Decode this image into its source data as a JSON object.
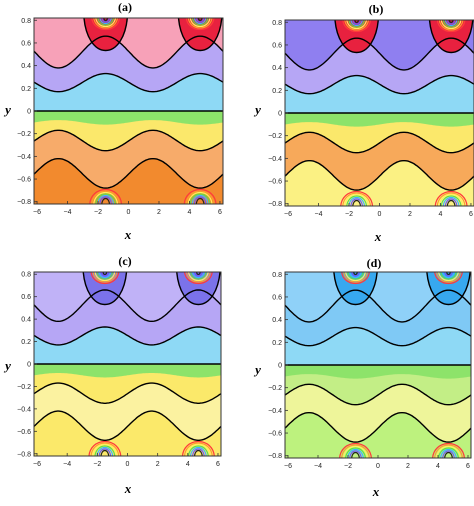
{
  "chart_data": [
    {
      "type": "contour",
      "title": "(a)",
      "xlabel": "x",
      "ylabel": "y",
      "xlim": [
        -6.2,
        6.2
      ],
      "ylim": [
        -0.82,
        0.82
      ],
      "xticks": [
        -6,
        -4,
        -2,
        0,
        2,
        4,
        6
      ],
      "yticks": [
        -0.8,
        -0.6,
        -0.4,
        -0.2,
        0,
        0.2,
        0.4,
        0.6,
        0.8
      ],
      "peaks_x": [
        -1.5,
        4.7
      ],
      "contour_levels_y_at_x0": [
        0.25,
        0.55,
        0.0,
        -0.25,
        -0.55
      ],
      "band_colors_bottom_to_top": [
        "#f28a2e",
        "#f7ab6a",
        "#fbe86b",
        "#8de36a",
        "#8ed9f5",
        "#b6a6f5",
        "#e8213f",
        "#f7a1b8"
      ],
      "grid": false
    },
    {
      "type": "contour",
      "title": "(b)",
      "xlabel": "x",
      "ylabel": "y",
      "xlim": [
        -6.2,
        6.2
      ],
      "ylim": [
        -0.82,
        0.82
      ],
      "xticks": [
        -6,
        -4,
        -2,
        0,
        2,
        4,
        6
      ],
      "yticks": [
        -0.8,
        -0.6,
        -0.4,
        -0.2,
        0,
        0.2,
        0.4,
        0.6,
        0.8
      ],
      "peaks_x": [
        -1.5,
        4.7
      ],
      "contour_levels_y_at_x0": [
        0.25,
        0.55,
        0.0,
        -0.25,
        -0.55
      ],
      "band_colors_bottom_to_top": [
        "#fbf183",
        "#f7a95a",
        "#fbe86b",
        "#8de36a",
        "#8ed9f5",
        "#b6a6f5",
        "#e8213f",
        "#8f7ff0"
      ],
      "grid": false
    },
    {
      "type": "contour",
      "title": "(c)",
      "xlabel": "x",
      "ylabel": "y",
      "xlim": [
        -6.2,
        6.2
      ],
      "ylim": [
        -0.82,
        0.82
      ],
      "xticks": [
        -6,
        -4,
        -2,
        0,
        2,
        4,
        6
      ],
      "yticks": [
        -0.8,
        -0.6,
        -0.4,
        -0.2,
        0,
        0.2,
        0.4,
        0.6,
        0.8
      ],
      "peaks_x": [
        -1.5,
        4.7
      ],
      "contour_levels_y_at_x0": [
        0.25,
        0.55,
        0.0,
        -0.25,
        -0.55
      ],
      "band_colors_bottom_to_top": [
        "#fbe96a",
        "#fbf2a0",
        "#fbe96a",
        "#8de36a",
        "#8ed9f5",
        "#b6a6f5",
        "#7b72ea",
        "#c0b2f7"
      ],
      "grid": false
    },
    {
      "type": "contour",
      "title": "(d)",
      "xlabel": "x",
      "ylabel": "y",
      "xlim": [
        -6.2,
        6.2
      ],
      "ylim": [
        -0.82,
        0.82
      ],
      "xticks": [
        -6,
        -4,
        -2,
        0,
        2,
        4,
        6
      ],
      "yticks": [
        -0.8,
        -0.6,
        -0.4,
        -0.2,
        0,
        0.2,
        0.4,
        0.6,
        0.8
      ],
      "peaks_x": [
        -1.5,
        4.7
      ],
      "contour_levels_y_at_x0": [
        0.25,
        0.55,
        0.0,
        -0.25,
        -0.55
      ],
      "band_colors_bottom_to_top": [
        "#bdf27e",
        "#eef59a",
        "#c3ee86",
        "#8de36a",
        "#8ed9f5",
        "#7fc9f5",
        "#37a8ef",
        "#8fd1f8"
      ],
      "grid": false
    }
  ]
}
